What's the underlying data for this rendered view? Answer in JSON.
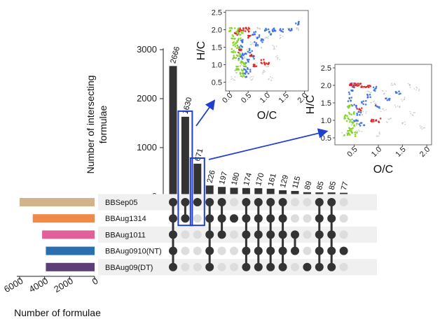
{
  "chart_data": [
    {
      "type": "bar",
      "title": "",
      "ylabel": "Number of intersecting formulae",
      "ylim": [
        0,
        3000
      ],
      "yticks": [
        0,
        1000,
        2000,
        3000
      ],
      "values": [
        2666,
        1630,
        671,
        226,
        197,
        180,
        174,
        170,
        161,
        129,
        115,
        89,
        85,
        85,
        77
      ],
      "value_labels": [
        "2666",
        "1630",
        "671",
        "226",
        "197",
        "180",
        "174",
        "170",
        "161",
        "129",
        "115",
        "89",
        "85",
        "85",
        "77"
      ],
      "highlighted_columns": [
        1,
        2
      ],
      "bar_color": "#333333",
      "highlight_color": "#1f3fcc"
    },
    {
      "type": "bar",
      "orientation": "horizontal",
      "xlabel": "Number of formulae",
      "xlim": [
        6000,
        0
      ],
      "xticks": [
        6000,
        4000,
        2000,
        0
      ],
      "xtick_labels": [
        "6000",
        "4000",
        "2000",
        "0"
      ],
      "sets": [
        {
          "name": "BBSep05",
          "value": 6000,
          "color": "#d2b48c"
        },
        {
          "name": "BBAug1314",
          "value": 4950,
          "color": "#f08a4b"
        },
        {
          "name": "BBAug1011",
          "value": 4200,
          "color": "#e0609a"
        },
        {
          "name": "BBAug0910(NT)",
          "value": 3900,
          "color": "#2a6fb0"
        },
        {
          "name": "BBAug09(DT)",
          "value": 3900,
          "color": "#5b3f75"
        }
      ]
    },
    {
      "type": "table",
      "description_of": "intersection membership matrix",
      "rows": [
        "BBSep05",
        "BBAug1314",
        "BBAug1011",
        "BBAug0910(NT)",
        "BBAug09(DT)"
      ],
      "membership": [
        [
          1,
          1,
          1,
          1,
          1
        ],
        [
          1,
          1,
          0,
          0,
          0
        ],
        [
          1,
          0,
          0,
          0,
          0
        ],
        [
          1,
          1,
          1,
          1,
          1
        ],
        [
          1,
          1,
          1,
          0,
          0
        ],
        [
          0,
          1,
          0,
          0,
          0
        ],
        [
          1,
          1,
          1,
          1,
          1
        ],
        [
          1,
          1,
          1,
          1,
          1
        ],
        [
          1,
          1,
          1,
          1,
          1
        ],
        [
          1,
          1,
          1,
          1,
          1
        ],
        [
          0,
          0,
          1,
          1,
          0
        ],
        [
          0,
          0,
          0,
          0,
          1
        ],
        [
          1,
          1,
          1,
          1,
          1
        ],
        [
          1,
          1,
          1,
          1,
          1
        ],
        [
          0,
          0,
          0,
          1,
          0
        ]
      ],
      "dot_on_color": "#333333",
      "dot_off_color": "#dddddd"
    },
    {
      "type": "scatter",
      "xlabel": "O/C",
      "ylabel": "H/C",
      "xlim": [
        -0.1,
        2.1
      ],
      "ylim": [
        0.25,
        2.55
      ],
      "xticks": [
        0.0,
        0.5,
        1.0,
        1.5,
        2.0
      ],
      "xtick_labels": [
        "0.0",
        "0.5",
        "1.0",
        "1.5",
        "2.0"
      ],
      "yticks": [
        0.5,
        1.0,
        1.5,
        2.0,
        2.5
      ],
      "ytick_labels": [
        "0.5",
        "1.0",
        "1.5",
        "2.0",
        "2.5"
      ],
      "series": [
        {
          "color": "#bbbbbb",
          "points": [
            [
              0.1,
              0.6
            ],
            [
              0.2,
              0.8
            ],
            [
              0.3,
              1.0
            ],
            [
              0.4,
              1.2
            ],
            [
              0.5,
              1.4
            ],
            [
              0.6,
              1.6
            ],
            [
              0.7,
              1.8
            ],
            [
              0.8,
              2.0
            ],
            [
              1.0,
              1.0
            ],
            [
              1.2,
              1.5
            ],
            [
              1.4,
              1.8
            ],
            [
              1.6,
              2.0
            ],
            [
              1.8,
              2.0
            ],
            [
              0.9,
              0.8
            ],
            [
              1.1,
              0.6
            ],
            [
              0.8,
              1.5
            ],
            [
              1.0,
              1.8
            ],
            [
              1.3,
              1.2
            ],
            [
              0.6,
              0.6
            ],
            [
              0.7,
              1.0
            ]
          ]
        },
        {
          "color": "#3b6fe0",
          "points": [
            [
              0.3,
              1.5
            ],
            [
              0.4,
              1.3
            ],
            [
              0.5,
              1.1
            ],
            [
              0.45,
              0.9
            ],
            [
              0.35,
              1.7
            ],
            [
              0.55,
              1.4
            ],
            [
              0.6,
              1.2
            ],
            [
              0.7,
              1.6
            ],
            [
              0.8,
              1.8
            ],
            [
              1.0,
              2.0
            ],
            [
              1.2,
              2.0
            ],
            [
              1.4,
              2.0
            ],
            [
              1.6,
              2.0
            ],
            [
              1.8,
              2.2
            ],
            [
              0.9,
              1.7
            ],
            [
              1.1,
              1.9
            ],
            [
              0.4,
              0.7
            ],
            [
              0.5,
              0.8
            ],
            [
              0.3,
              1.2
            ],
            [
              0.65,
              1.9
            ]
          ]
        },
        {
          "color": "#e02020",
          "points": [
            [
              0.4,
              2.0
            ],
            [
              0.5,
              1.8
            ],
            [
              0.6,
              1.3
            ],
            [
              0.7,
              1.0
            ],
            [
              0.2,
              1.9
            ],
            [
              0.3,
              1.4
            ],
            [
              1.0,
              1.0
            ],
            [
              0.9,
              1.1
            ],
            [
              0.5,
              2.0
            ],
            [
              0.3,
              2.0
            ]
          ]
        },
        {
          "color": "#7ed321",
          "points": [
            [
              0.05,
              2.0
            ],
            [
              0.1,
              1.8
            ],
            [
              0.15,
              1.6
            ],
            [
              0.2,
              1.5
            ],
            [
              0.25,
              1.3
            ],
            [
              0.3,
              1.1
            ],
            [
              0.2,
              0.9
            ],
            [
              0.3,
              0.8
            ],
            [
              0.15,
              1.2
            ],
            [
              0.1,
              1.4
            ],
            [
              0.4,
              1.0
            ],
            [
              0.35,
              0.7
            ],
            [
              0.25,
              1.7
            ],
            [
              0.3,
              1.9
            ],
            [
              0.2,
              2.0
            ]
          ]
        }
      ]
    },
    {
      "type": "scatter",
      "xlabel": "O/C",
      "ylabel": "H/C",
      "xlim": [
        0.1,
        2.1
      ],
      "ylim": [
        0.3,
        2.6
      ],
      "xticks": [
        0.5,
        1.0,
        1.5,
        2.0
      ],
      "xtick_labels": [
        "0.5",
        "1.0",
        "1.5",
        "2.0"
      ],
      "yticks": [
        0.5,
        1.0,
        1.5,
        2.0,
        2.5
      ],
      "ytick_labels": [
        "0.5",
        "1.0",
        "1.5",
        "2.0",
        "2.5"
      ],
      "series": [
        {
          "color": "#bbbbbb",
          "points": [
            [
              0.3,
              0.6
            ],
            [
              0.5,
              0.9
            ],
            [
              0.7,
              1.2
            ],
            [
              0.9,
              1.5
            ],
            [
              1.1,
              1.8
            ],
            [
              1.3,
              2.0
            ],
            [
              1.5,
              1.6
            ],
            [
              1.7,
              1.2
            ],
            [
              1.9,
              0.8
            ],
            [
              1.0,
              0.6
            ],
            [
              1.2,
              1.0
            ],
            [
              1.4,
              1.4
            ],
            [
              0.8,
              1.8
            ],
            [
              1.6,
              2.0
            ],
            [
              1.8,
              1.9
            ],
            [
              0.6,
              0.7
            ],
            [
              1.1,
              1.3
            ],
            [
              1.5,
              0.9
            ]
          ]
        },
        {
          "color": "#3b6fe0",
          "points": [
            [
              0.4,
              1.6
            ],
            [
              0.5,
              1.4
            ],
            [
              0.6,
              1.2
            ],
            [
              0.7,
              1.5
            ],
            [
              0.8,
              1.7
            ],
            [
              0.9,
              1.9
            ],
            [
              1.0,
              1.4
            ],
            [
              0.55,
              1.0
            ],
            [
              0.45,
              1.8
            ],
            [
              0.65,
              0.9
            ],
            [
              1.2,
              1.6
            ],
            [
              1.4,
              1.8
            ],
            [
              0.5,
              2.0
            ]
          ]
        },
        {
          "color": "#e02020",
          "points": [
            [
              0.4,
              2.0
            ],
            [
              0.5,
              2.0
            ],
            [
              0.6,
              2.0
            ],
            [
              0.7,
              2.0
            ],
            [
              0.8,
              2.0
            ],
            [
              0.9,
              1.0
            ],
            [
              1.0,
              1.0
            ],
            [
              0.6,
              1.3
            ]
          ]
        },
        {
          "color": "#7ed321",
          "points": [
            [
              0.35,
              0.6
            ],
            [
              0.4,
              0.7
            ],
            [
              0.45,
              0.8
            ],
            [
              0.4,
              1.0
            ],
            [
              0.35,
              1.1
            ],
            [
              0.5,
              0.9
            ],
            [
              0.45,
              1.2
            ],
            [
              0.4,
              1.4
            ],
            [
              0.5,
              0.6
            ]
          ]
        }
      ]
    }
  ]
}
